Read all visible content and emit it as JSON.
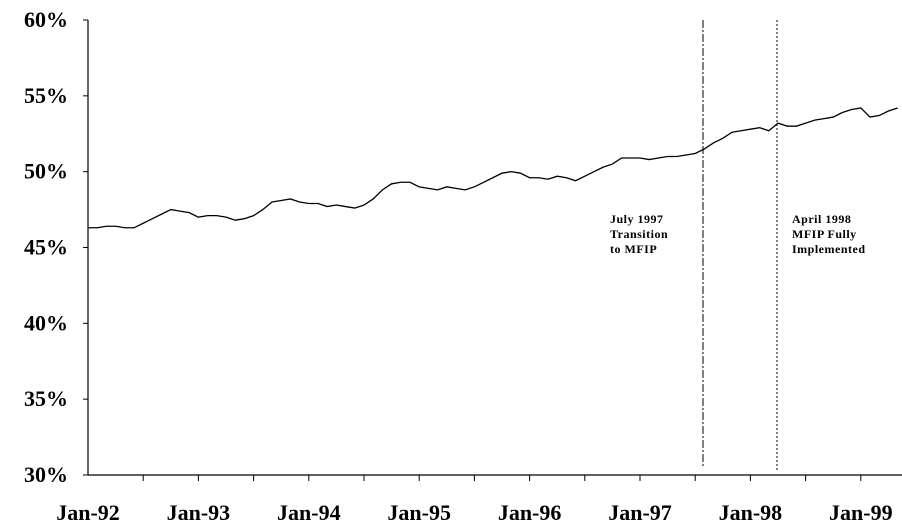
{
  "chart_data": {
    "type": "line",
    "categories": [
      "Jan-92",
      null,
      null,
      null,
      null,
      null,
      null,
      null,
      null,
      null,
      null,
      null,
      "Jan-93",
      null,
      null,
      null,
      null,
      null,
      null,
      null,
      null,
      null,
      null,
      null,
      "Jan-94",
      null,
      null,
      null,
      null,
      null,
      null,
      null,
      null,
      null,
      null,
      null,
      "Jan-95",
      null,
      null,
      null,
      null,
      null,
      null,
      null,
      null,
      null,
      null,
      null,
      "Jan-96",
      null,
      null,
      null,
      null,
      null,
      null,
      null,
      null,
      null,
      null,
      null,
      "Jan-97",
      null,
      null,
      null,
      null,
      null,
      null,
      null,
      null,
      null,
      null,
      null,
      "Jan-98",
      null,
      null,
      null,
      null,
      null,
      null,
      null,
      null,
      null,
      null,
      null,
      "Jan-99",
      null,
      null,
      null,
      null
    ],
    "series": [
      {
        "color": "#000000",
        "values": [
          46.3,
          46.3,
          46.4,
          46.4,
          46.3,
          46.3,
          46.6,
          46.9,
          47.2,
          47.5,
          47.4,
          47.3,
          47.0,
          47.1,
          47.1,
          47.0,
          46.8,
          46.9,
          47.1,
          47.5,
          48.0,
          48.1,
          48.2,
          48.0,
          47.9,
          47.9,
          47.7,
          47.8,
          47.7,
          47.6,
          47.8,
          48.2,
          48.8,
          49.2,
          49.3,
          49.3,
          49.0,
          48.9,
          48.8,
          49.0,
          48.9,
          48.8,
          49.0,
          49.3,
          49.6,
          49.9,
          50.0,
          49.9,
          49.6,
          49.6,
          49.5,
          49.7,
          49.6,
          49.4,
          49.7,
          50.0,
          50.3,
          50.5,
          50.9,
          50.9,
          50.9,
          50.8,
          50.9,
          51.0,
          51.0,
          51.1,
          51.2,
          51.5,
          51.9,
          52.2,
          52.6,
          52.7,
          52.8,
          52.9,
          52.7,
          53.2,
          53.0,
          53.0,
          53.2,
          53.4,
          53.5,
          53.6,
          53.9,
          54.1,
          54.2,
          53.6,
          53.7,
          54.0,
          54.2
        ]
      }
    ],
    "ylim": [
      30,
      60
    ],
    "yticks": [
      {
        "value": 30,
        "label": "30%"
      },
      {
        "value": 35,
        "label": "35%"
      },
      {
        "value": 40,
        "label": "40%"
      },
      {
        "value": 45,
        "label": "45%"
      },
      {
        "value": 50,
        "label": "50%"
      },
      {
        "value": 55,
        "label": "55%"
      },
      {
        "value": 60,
        "label": "60%"
      }
    ],
    "annotations": [
      {
        "lines": [
          "July 1997",
          "Transition",
          "to MFIP"
        ]
      },
      {
        "lines": [
          "April 1998",
          "MFIP Fully",
          "Implemented"
        ]
      }
    ]
  }
}
